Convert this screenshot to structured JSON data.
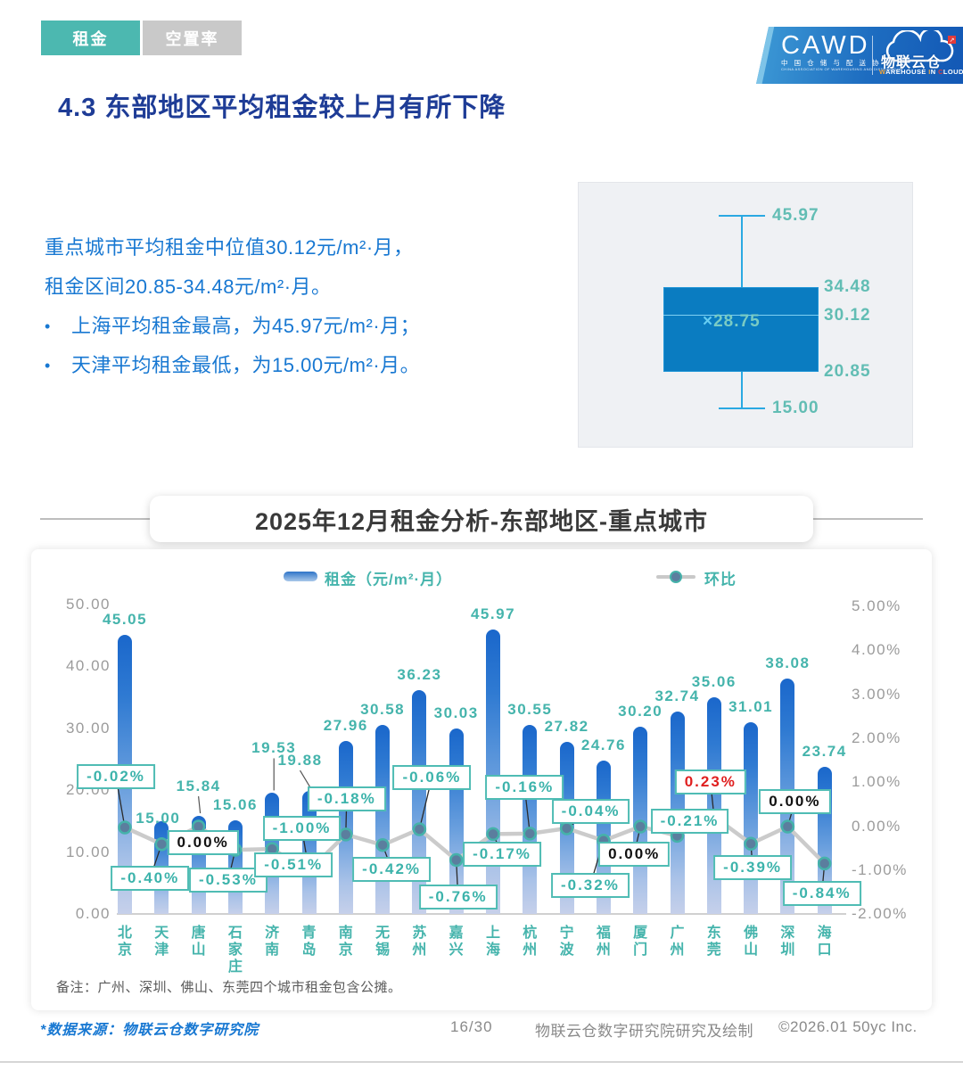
{
  "tabs": [
    {
      "label": "租金",
      "active": true
    },
    {
      "label": "空置率",
      "active": false
    }
  ],
  "logo": {
    "cawd": "CAWD",
    "cawd_sub_cn": "中 国 仓 储 与 配 送 协 会",
    "cawd_sub_en": "CHINA ASSOCIATION OF WAREHOUSING AND DISTRIBUTION",
    "cloud_cn": "物联云仓",
    "cloud_en_parts": [
      {
        "t": "W",
        "c": "#f0a63c"
      },
      {
        "t": "AREHOUSE ",
        "c": "#ffffff"
      },
      {
        "t": "I",
        "c": "#f0a63c"
      },
      {
        "t": "N ",
        "c": "#ffffff"
      },
      {
        "t": "C",
        "c": "#e23b3b"
      },
      {
        "t": "LOUD",
        "c": "#ffffff"
      }
    ],
    "arrow": "↗"
  },
  "page_title": "4.3 东部地区平均租金较上月有所下降",
  "summary": {
    "line1": "重点城市平均租金中位值30.12元/m²·月，",
    "line2": "租金区间20.85-34.48元/m²·月。",
    "bullets": [
      "上海平均租金最高，为45.97元/m²·月；",
      "天津平均租金最低，为15.00元/m²·月。"
    ]
  },
  "boxplot": {
    "max": 45.97,
    "q3": 34.48,
    "median": 30.12,
    "mean": 28.75,
    "q1": 20.85,
    "min": 15.0,
    "mean_prefix": "×"
  },
  "section_title": "2025年12月租金分析-东部地区-重点城市",
  "chart_data": {
    "type": "bar+line",
    "title": "2025年12月租金分析-东部地区-重点城市",
    "legend": [
      {
        "name": "租金（元/m²·月）",
        "type": "bar"
      },
      {
        "name": "环比",
        "type": "line"
      }
    ],
    "categories": [
      "北京",
      "天津",
      "唐山",
      "石家庄",
      "济南",
      "青岛",
      "南京",
      "无锡",
      "苏州",
      "嘉兴",
      "上海",
      "杭州",
      "宁波",
      "福州",
      "厦门",
      "广州",
      "东莞",
      "佛山",
      "深圳",
      "海口"
    ],
    "series": [
      {
        "name": "租金（元/m²·月）",
        "type": "bar",
        "values": [
          45.05,
          15.0,
          15.84,
          15.06,
          19.53,
          19.88,
          27.96,
          30.58,
          36.23,
          30.03,
          45.97,
          30.55,
          27.82,
          24.76,
          30.2,
          32.74,
          35.06,
          31.01,
          38.08,
          23.74
        ]
      },
      {
        "name": "环比",
        "type": "line",
        "values": [
          -0.02,
          -0.4,
          0.0,
          -0.53,
          -0.51,
          -1.0,
          -0.18,
          -0.42,
          -0.06,
          -0.76,
          -0.17,
          -0.16,
          -0.04,
          -0.32,
          0.0,
          -0.21,
          0.23,
          -0.39,
          0.0,
          -0.84
        ]
      }
    ],
    "pct_labels": [
      "-0.02%",
      "-0.40%",
      "0.00%",
      "-0.53%",
      "-0.51%",
      "-1.00%",
      "-0.18%",
      "-0.42%",
      "-0.06%",
      "-0.76%",
      "-0.17%",
      "-0.16%",
      "-0.04%",
      "-0.32%",
      "0.00%",
      "-0.21%",
      "0.23%",
      "-0.39%",
      "0.00%",
      "-0.84%"
    ],
    "y_left_ticks": [
      "50.00",
      "40.00",
      "30.00",
      "20.00",
      "10.00",
      "0.00"
    ],
    "y_right_ticks": [
      "5.00%",
      "4.00%",
      "3.00%",
      "2.00%",
      "1.00%",
      "0.00%",
      "-1.00%",
      "-2.00%"
    ],
    "y_left_range": [
      0,
      50
    ],
    "y_right_range": [
      -2,
      5
    ],
    "grid": false,
    "legend_position": "top"
  },
  "note": "备注：广州、深圳、佛山、东莞四个城市租金包含公摊。",
  "footer": {
    "source": "*数据来源：物联云仓数字研究院",
    "page": "16/30",
    "credit": "物联云仓数字研究院研究及绘制",
    "copyright": "©2026.01 50yc Inc."
  },
  "colors": {
    "accent_teal": "#45b4ac",
    "tab_inactive": "#c9c9c9",
    "title_blue": "#1e3c96",
    "body_blue": "#1878d2",
    "bar_top": "#1a67cb",
    "bar_bottom": "#c6d0ea",
    "box_fill": "#0a7cc1",
    "whisker_blue": "#2aa9e2",
    "line_gray": "#cbcbcb",
    "marker_fill": "#5b7e9e",
    "pct_positive_red": "#e01f1f",
    "pct_zero_black": "#111111",
    "axis_gray": "#9b9b9b"
  }
}
